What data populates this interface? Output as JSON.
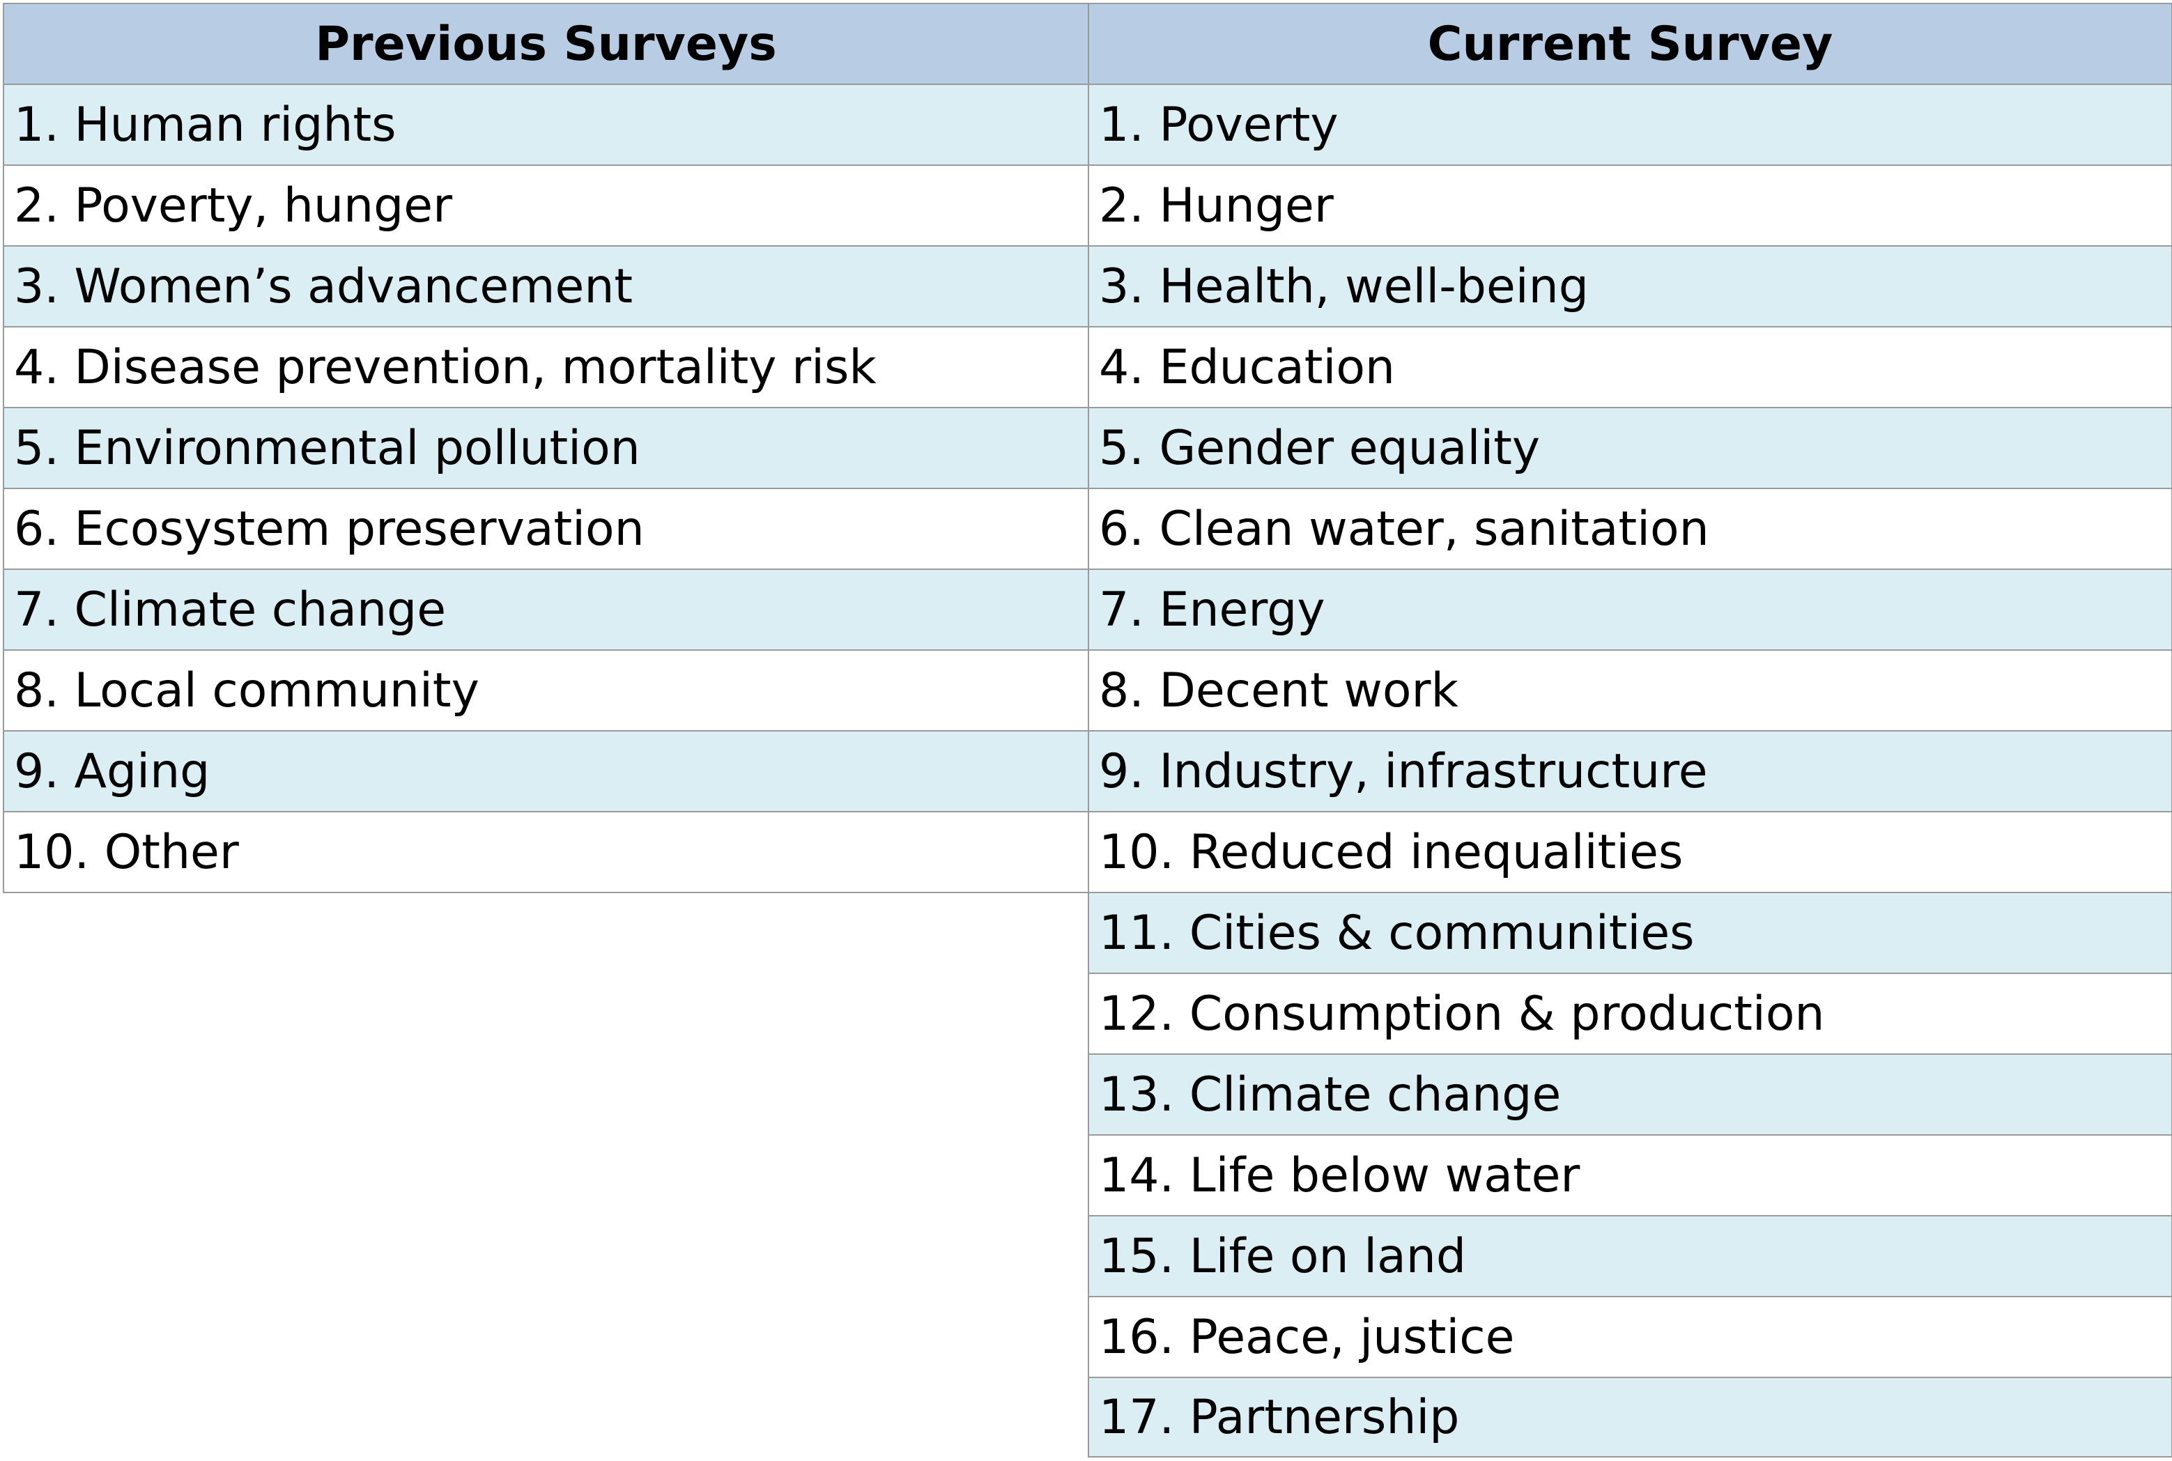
{
  "table": {
    "headers": {
      "previous": "Previous Surveys",
      "current": "Current Survey"
    },
    "previous_items": [
      "1. Human rights",
      "2. Poverty, hunger",
      "3. Women’s advancement",
      "4. Disease prevention, mortality risk",
      "5. Environmental pollution",
      "6. Ecosystem preservation",
      "7. Climate change",
      "8. Local community",
      "9. Aging",
      "10. Other"
    ],
    "current_items": [
      "1. Poverty",
      "2. Hunger",
      "3. Health, well-being",
      "4. Education",
      "5. Gender equality",
      "6. Clean water, sanitation",
      "7. Energy",
      "8. Decent work",
      "9. Industry, infrastructure",
      "10. Reduced inequalities",
      "11. Cities & communities",
      "12. Consumption & production",
      "13. Climate change",
      "14. Life below water",
      "15. Life on land",
      "16. Peace, justice",
      "17. Partnership"
    ]
  },
  "colors": {
    "header_bg": "#b8cce4",
    "shaded_row_bg": "#daeef3",
    "plain_row_bg": "#ffffff",
    "grid_line": "#9a9a9a"
  }
}
